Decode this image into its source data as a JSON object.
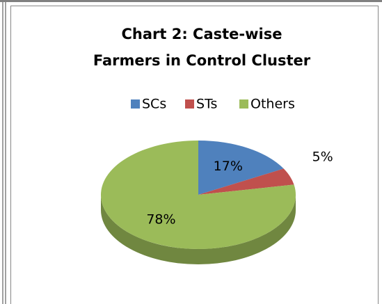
{
  "chart_data": {
    "type": "pie",
    "title": "Chart 2: Caste-wise Farmers in Control Cluster",
    "categories": [
      "SCs",
      "STs",
      "Others"
    ],
    "values": [
      17,
      5,
      78
    ],
    "value_labels": [
      "17%",
      "5%",
      "78%"
    ],
    "colors": [
      "#4f81bd",
      "#c0504d",
      "#9bbb59"
    ],
    "legend": "top"
  }
}
